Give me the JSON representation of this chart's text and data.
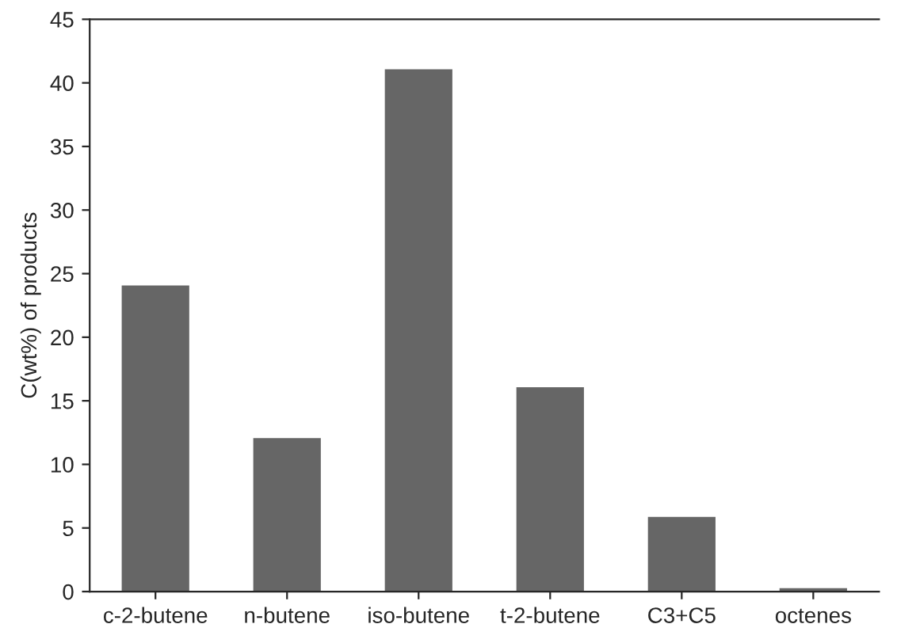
{
  "chart_data": {
    "type": "bar",
    "ylabel": "C(wt%) of products",
    "categories": [
      "c-2-butene",
      "n-butene",
      "iso-butene",
      "t-2-butene",
      "C3+C5",
      "octenes"
    ],
    "values": [
      24,
      12,
      41,
      16,
      5.8,
      0.2
    ],
    "color": "#666666",
    "ylim": [
      0,
      45
    ],
    "yticks": [
      0,
      5,
      10,
      15,
      20,
      25,
      30,
      35,
      40,
      45
    ],
    "grid": false
  }
}
